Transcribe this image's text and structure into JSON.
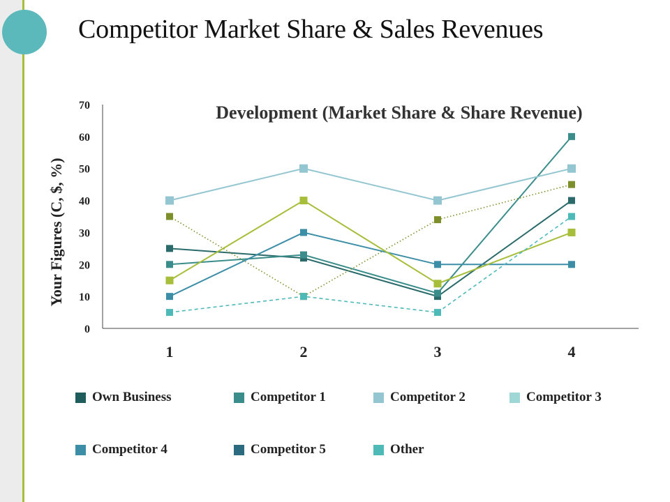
{
  "slide": {
    "title": "Competitor Market Share & Sales Revenues",
    "accent_color": "#a6be3a",
    "circle_color": "#5bb9bb"
  },
  "chart_data": {
    "type": "line",
    "title": "Development (Market Share & Share Revenue)",
    "xlabel": "",
    "ylabel": "Your Figures (C, $, %)",
    "categories": [
      "1",
      "2",
      "3",
      "4"
    ],
    "ylim": [
      0,
      70
    ],
    "yticks": [
      0,
      10,
      20,
      30,
      40,
      50,
      60,
      70
    ],
    "grid": false,
    "legend_position": "bottom",
    "series": [
      {
        "name": "Own Business",
        "values": [
          25,
          22,
          10,
          40
        ],
        "color": "#2a6a6a",
        "style": "solid"
      },
      {
        "name": "Competitor 1",
        "values": [
          20,
          23,
          11,
          60
        ],
        "color": "#3a8d8a",
        "style": "solid"
      },
      {
        "name": "Competitor 2",
        "values": [
          40,
          50,
          40,
          50
        ],
        "color": "#94c6d1",
        "style": "solid"
      },
      {
        "name": "Competitor 3",
        "values": [
          35,
          10,
          34,
          45
        ],
        "color": "#7d8f2a",
        "style": "dotted"
      },
      {
        "name": "Competitor 4",
        "values": [
          10,
          30,
          20,
          20
        ],
        "color": "#3c8ea7",
        "style": "solid"
      },
      {
        "name": "Competitor 5",
        "values": [
          15,
          40,
          14,
          30
        ],
        "color": "#a6be3a",
        "style": "solid"
      },
      {
        "name": "Other",
        "values": [
          5,
          10,
          5,
          35
        ],
        "color": "#4dbab8",
        "style": "dashed"
      }
    ],
    "legend": [
      {
        "name": "Own Business",
        "color": "#1f5c5c"
      },
      {
        "name": "Competitor 1",
        "color": "#3a8d8a"
      },
      {
        "name": "Competitor 2",
        "color": "#94c6d1"
      },
      {
        "name": "Competitor 3",
        "color": "#9fd6d6"
      },
      {
        "name": "Competitor 4",
        "color": "#3c8ea7"
      },
      {
        "name": "Competitor 5",
        "color": "#2c6a80"
      },
      {
        "name": "Other",
        "color": "#4dbab8"
      }
    ]
  }
}
